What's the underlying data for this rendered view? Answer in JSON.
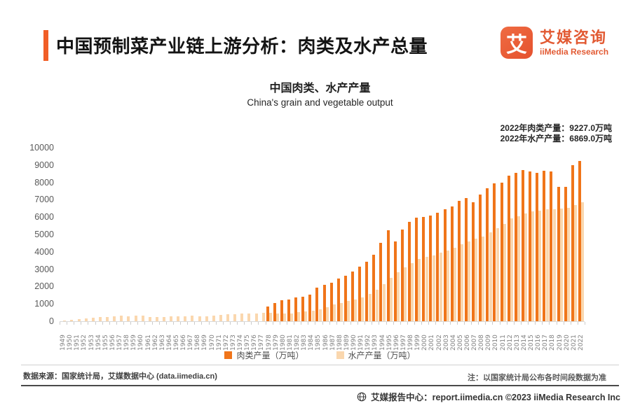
{
  "header": {
    "title": "中国预制菜产业链上游分析：肉类及水产总量",
    "logo": {
      "glyph": "艾",
      "name_cn": "艾媒咨询",
      "name_en": "iiMedia Research"
    }
  },
  "chart_data": {
    "type": "bar",
    "title": "中国肉类、水产产量",
    "subtitle": "China's grain and vegetable output",
    "xlabel": "",
    "ylabel": "万吨",
    "ylim": [
      0,
      10000
    ],
    "ytick_step": 1000,
    "grid": false,
    "legend_position": "bottom",
    "annotations": [
      "2022年肉类产量：9227.0万吨",
      "2022年水产产量：6869.0万吨"
    ],
    "categories": [
      1949,
      1950,
      1951,
      1952,
      1953,
      1954,
      1955,
      1956,
      1957,
      1958,
      1959,
      1960,
      1961,
      1962,
      1963,
      1964,
      1965,
      1966,
      1967,
      1968,
      1969,
      1970,
      1971,
      1972,
      1973,
      1974,
      1975,
      1976,
      1977,
      1978,
      1979,
      1980,
      1981,
      1982,
      1983,
      1984,
      1985,
      1986,
      1987,
      1988,
      1989,
      1990,
      1991,
      1992,
      1993,
      1994,
      1995,
      1996,
      1997,
      1998,
      1999,
      2000,
      2001,
      2002,
      2003,
      2004,
      2005,
      2006,
      2007,
      2008,
      2009,
      2010,
      2011,
      2012,
      2013,
      2014,
      2015,
      2016,
      2017,
      2018,
      2019,
      2020,
      2021,
      2022
    ],
    "series": [
      {
        "name": "肉类产量（万吨）",
        "color": "#F0751A",
        "values": [
          null,
          null,
          null,
          null,
          null,
          null,
          null,
          null,
          null,
          null,
          null,
          null,
          null,
          null,
          null,
          null,
          null,
          null,
          null,
          null,
          null,
          null,
          null,
          null,
          null,
          null,
          null,
          null,
          null,
          856,
          1062,
          1205,
          1261,
          1351,
          1402,
          1541,
          1927,
          2112,
          2216,
          2479,
          2629,
          2857,
          3144,
          3431,
          3841,
          4499,
          5260,
          4584,
          5269,
          5724,
          5949,
          6014,
          6106,
          6234,
          6443,
          6609,
          6939,
          7089,
          6866,
          7279,
          7650,
          7926,
          7965,
          8387,
          8536,
          8707,
          8625,
          8538,
          8654,
          8625,
          7759,
          7748,
          8990,
          9227
        ]
      },
      {
        "name": "水产产量（万吨）",
        "color": "#FAD7AE",
        "values": [
          45,
          91,
          133,
          167,
          190,
          229,
          252,
          265,
          312,
          281,
          309,
          304,
          231,
          228,
          262,
          280,
          298,
          300,
          305,
          290,
          293,
          318,
          350,
          384,
          393,
          426,
          441,
          448,
          470,
          466,
          431,
          450,
          461,
          516,
          546,
          619,
          705,
          824,
          955,
          1061,
          1152,
          1237,
          1351,
          1557,
          1823,
          2146,
          2517,
          2813,
          3124,
          3366,
          3575,
          3706,
          3796,
          3955,
          4077,
          4247,
          4420,
          4584,
          4748,
          4896,
          5116,
          5373,
          5603,
          5908,
          6060,
          6210,
          6350,
          6380,
          6440,
          6460,
          6480,
          6549,
          6693,
          6869
        ]
      }
    ]
  },
  "footer": {
    "source": "数据来源：国家统计局，艾媒数据中心 (data.iimedia.cn)",
    "note": "注：以国家统计局公布各时间段数据为准",
    "bottom": "艾媒报告中心：report.iimedia.cn ©2023 iiMedia Research Inc"
  }
}
